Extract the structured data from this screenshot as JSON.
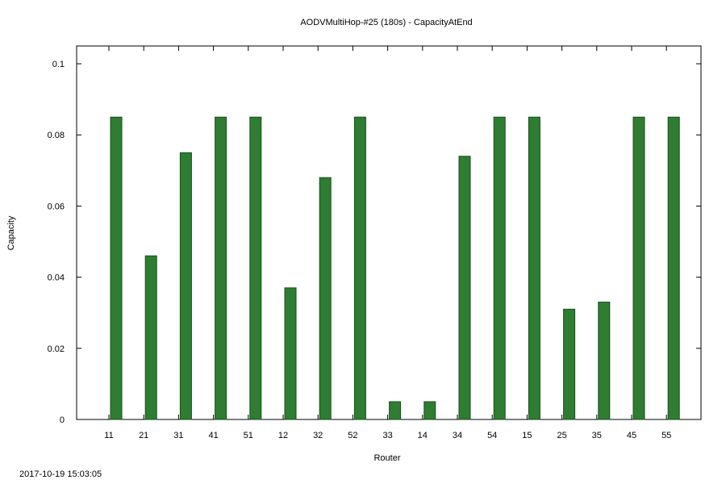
{
  "chart_data": {
    "type": "bar",
    "title": "AODVMultiHop-#25 (180s) - CapacityAtEnd",
    "xlabel": "Router",
    "ylabel": "Capacity",
    "categories": [
      "11",
      "21",
      "31",
      "41",
      "51",
      "12",
      "32",
      "52",
      "33",
      "14",
      "34",
      "54",
      "15",
      "25",
      "35",
      "45",
      "55"
    ],
    "values": [
      0.085,
      0.046,
      0.075,
      0.085,
      0.085,
      0.037,
      0.068,
      0.085,
      0.005,
      0.005,
      0.074,
      0.085,
      0.085,
      0.031,
      0.033,
      0.085,
      0.085
    ],
    "ylim": [
      0,
      0.105
    ],
    "yticks": [
      "0",
      "0.02",
      "0.04",
      "0.06",
      "0.08",
      "0.1"
    ],
    "ytick_values": [
      0,
      0.02,
      0.04,
      0.06,
      0.08,
      0.1
    ],
    "grid": false,
    "legend": "none",
    "colors": {
      "bar_fill": "#2e7d32",
      "bar_stroke": "#1b4d1e",
      "axis": "#000000"
    }
  },
  "footer": {
    "timestamp": "2017-10-19 15:03:05"
  }
}
